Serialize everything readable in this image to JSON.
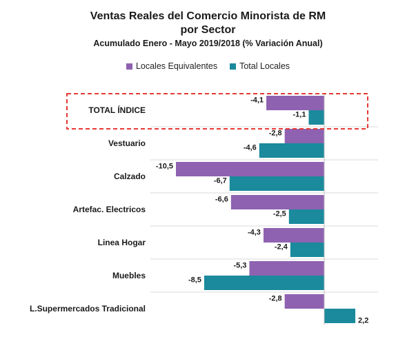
{
  "title": "Ventas Reales del Comercio Minorista de RM",
  "title_line2": "por Sector",
  "subtitle": "Acumulado Enero - Mayo 2019/2018 (% Variación Anual)",
  "colors": {
    "purple": "#8e62b0",
    "teal": "#1a8a9c",
    "highlight": "#e53935",
    "grid": "#d9d9d9"
  },
  "chart_data": {
    "type": "bar",
    "orientation": "horizontal",
    "title": "Ventas Reales del Comercio Minorista de RM por Sector",
    "subtitle": "Acumulado Enero - Mayo 2019/2018 (% Variación Anual)",
    "categories": [
      "TOTAL ÍNDICE",
      "Vestuario",
      "Calzado",
      "Artefac. Electricos",
      "Linea Hogar",
      "Muebles",
      "L.Supermercados Tradicional"
    ],
    "series": [
      {
        "name": "Locales Equivalentes",
        "values": [
          -4.1,
          -2.8,
          -10.5,
          -6.6,
          -4.3,
          -5.3,
          -2.8
        ],
        "labels": [
          "-4,1",
          "-2,8",
          "-10,5",
          "-6,6",
          "-4,3",
          "-5,3",
          "-2,8"
        ]
      },
      {
        "name": "Total Locales",
        "values": [
          -1.1,
          -4.6,
          -6.7,
          -2.5,
          -2.4,
          -8.5,
          2.2
        ],
        "labels": [
          "-1,1",
          "-4,6",
          "-6,7",
          "-2,5",
          "-2,4",
          "-8,5",
          "2,2"
        ]
      }
    ],
    "xlim": [
      -10.5,
      2.8
    ],
    "legend_position": "top",
    "highlighted_category": "TOTAL ÍNDICE"
  }
}
